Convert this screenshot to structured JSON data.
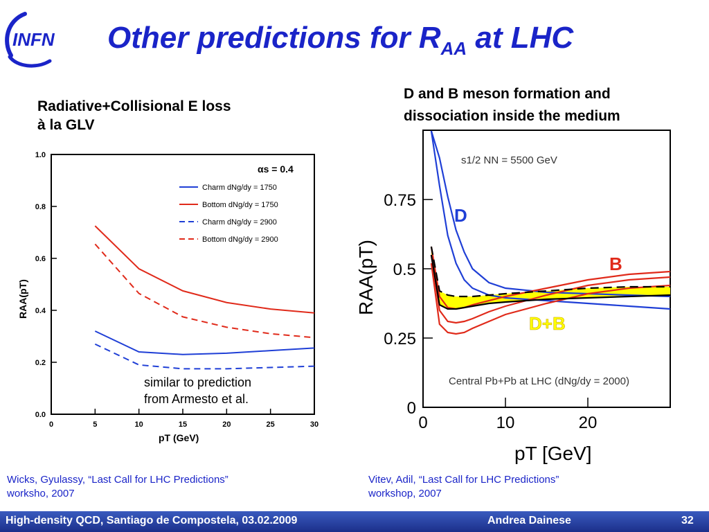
{
  "slide": {
    "logo_text": "INFN",
    "title": {
      "main": "Other predictions for R",
      "sub": "AA",
      "suffix": " at LHC"
    },
    "left_caption": [
      "Radiative+Collisional E loss",
      "à la GLV"
    ],
    "right_caption": [
      "D and B meson formation and",
      "dissociation inside the medium"
    ],
    "left_note": [
      "similar to  prediction",
      "from Armesto et al."
    ],
    "ref_left": [
      "Wicks, Gyulassy, “Last Call for LHC Predictions”",
      "worksho, 2007"
    ],
    "ref_right": [
      "Vitev, Adil,  “Last Call for LHC Predictions”",
      "workshop, 2007"
    ],
    "footer_left": "High-density QCD, Santiago de Compostela, 03.02.2009",
    "footer_author": "Andrea Dainese",
    "page_number": "32",
    "colors": {
      "title": "#1a24c8",
      "blue": "#1f3fd6",
      "red": "#e02a1a",
      "yellow": "#ffff00",
      "footer": "#2a43a8"
    }
  },
  "chart_data": [
    {
      "type": "line",
      "xlabel": "pT (GeV)",
      "ylabel": "RAA(pT)",
      "xlim": [
        0,
        30
      ],
      "ylim": [
        0,
        1.0
      ],
      "xticks": [
        "0",
        "5",
        "10",
        "15",
        "20",
        "25",
        "30"
      ],
      "yticks": [
        "0.0",
        "0.2",
        "0.4",
        "0.6",
        "0.8",
        "1.0"
      ],
      "annotation": "αs = 0.4",
      "legend_position": "top-right",
      "series": [
        {
          "name": "Charm dNg/dy = 1750",
          "color": "#1f3fd6",
          "dash": false,
          "x": [
            5,
            10,
            15,
            20,
            25,
            30
          ],
          "y": [
            0.32,
            0.24,
            0.23,
            0.235,
            0.245,
            0.255
          ]
        },
        {
          "name": "Bottom dNg/dy = 1750",
          "color": "#e02a1a",
          "dash": false,
          "x": [
            5,
            10,
            15,
            20,
            25,
            30
          ],
          "y": [
            0.725,
            0.56,
            0.475,
            0.43,
            0.405,
            0.39
          ]
        },
        {
          "name": "Charm dNg/dy = 2900",
          "color": "#1f3fd6",
          "dash": true,
          "x": [
            5,
            10,
            15,
            20,
            25,
            30
          ],
          "y": [
            0.27,
            0.19,
            0.175,
            0.175,
            0.18,
            0.185
          ]
        },
        {
          "name": "Bottom dNg/dy = 2900",
          "color": "#e02a1a",
          "dash": true,
          "x": [
            5,
            10,
            15,
            20,
            25,
            30
          ],
          "y": [
            0.655,
            0.465,
            0.375,
            0.335,
            0.31,
            0.295
          ]
        }
      ]
    },
    {
      "type": "line",
      "xlabel": "pT [GeV]",
      "ylabel": "RAA(pT)",
      "xlim": [
        0,
        30
      ],
      "ylim": [
        0,
        1.0
      ],
      "xticks": [
        "0",
        "10",
        "20"
      ],
      "yticks": [
        "0",
        "0.25",
        "0.5",
        "0.75"
      ],
      "annotation_top": "s1/2 NN = 5500 GeV",
      "annotation_bottom": "Central Pb+Pb at LHC (dNg/dy = 2000)",
      "labels": {
        "D": "D",
        "B": "B",
        "DB": "D+B"
      },
      "series": [
        {
          "name": "D upper",
          "color": "#1f3fd6",
          "x": [
            1,
            2,
            3,
            4,
            5,
            6,
            8,
            10,
            15,
            20,
            25,
            30
          ],
          "y": [
            1.0,
            0.9,
            0.76,
            0.64,
            0.56,
            0.5,
            0.45,
            0.43,
            0.415,
            0.41,
            0.405,
            0.4
          ]
        },
        {
          "name": "D lower",
          "color": "#1f3fd6",
          "x": [
            1,
            2,
            3,
            4,
            5,
            6,
            8,
            10,
            15,
            20,
            25,
            30
          ],
          "y": [
            1.0,
            0.8,
            0.62,
            0.52,
            0.46,
            0.43,
            0.405,
            0.395,
            0.385,
            0.375,
            0.365,
            0.355
          ]
        },
        {
          "name": "B upper",
          "color": "#e02a1a",
          "x": [
            1,
            2,
            3,
            4,
            5,
            6,
            8,
            10,
            15,
            20,
            25,
            30
          ],
          "y": [
            0.58,
            0.4,
            0.36,
            0.355,
            0.36,
            0.37,
            0.385,
            0.4,
            0.43,
            0.46,
            0.48,
            0.49
          ]
        },
        {
          "name": "B middle",
          "color": "#e02a1a",
          "x": [
            1,
            2,
            3,
            4,
            5,
            6,
            8,
            10,
            15,
            20,
            25,
            30
          ],
          "y": [
            0.55,
            0.35,
            0.31,
            0.305,
            0.31,
            0.32,
            0.345,
            0.365,
            0.405,
            0.44,
            0.46,
            0.47
          ]
        },
        {
          "name": "B lower",
          "color": "#e02a1a",
          "x": [
            1,
            2,
            3,
            4,
            5,
            6,
            8,
            10,
            15,
            20,
            25,
            30
          ],
          "y": [
            0.52,
            0.3,
            0.27,
            0.265,
            0.27,
            0.285,
            0.31,
            0.335,
            0.375,
            0.41,
            0.43,
            0.44
          ]
        },
        {
          "name": "D+B band upper",
          "color": "#000000",
          "dash": true,
          "x": [
            1,
            2,
            3,
            4,
            5,
            6,
            8,
            10,
            15,
            20,
            25,
            30
          ],
          "y": [
            0.58,
            0.42,
            0.405,
            0.4,
            0.4,
            0.4,
            0.405,
            0.41,
            0.42,
            0.43,
            0.435,
            0.435
          ]
        },
        {
          "name": "D+B band lower",
          "color": "#000000",
          "x": [
            1,
            2,
            3,
            4,
            5,
            6,
            8,
            10,
            15,
            20,
            25,
            30
          ],
          "y": [
            0.55,
            0.37,
            0.355,
            0.355,
            0.36,
            0.365,
            0.375,
            0.38,
            0.39,
            0.395,
            0.4,
            0.405
          ]
        }
      ]
    }
  ]
}
